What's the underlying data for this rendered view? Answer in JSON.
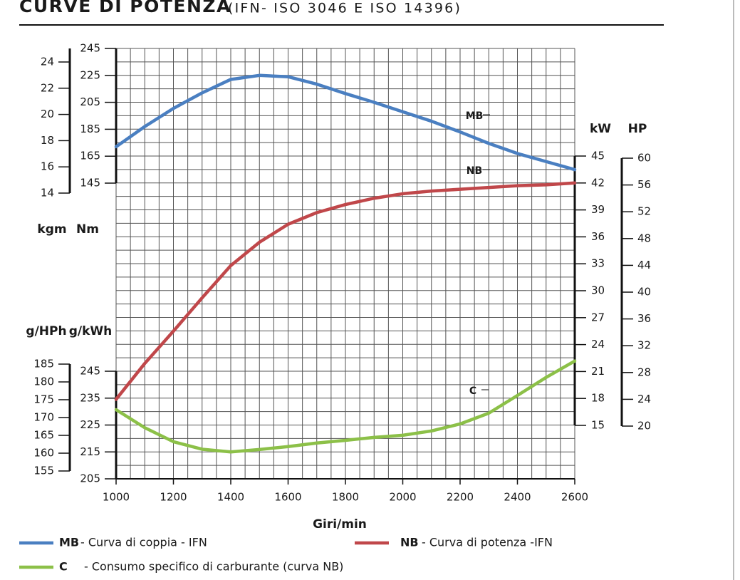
{
  "chart_data": {
    "type": "line",
    "title": "CURVE DI POTENZA",
    "subtitle": "(IFN- ISO 3046 E ISO 14396)",
    "grid": true,
    "xlabel": "Giri/min",
    "xlim": [
      1000,
      2600
    ],
    "xticks": [
      1000,
      1200,
      1400,
      1600,
      1800,
      2000,
      2200,
      2400,
      2600
    ],
    "x": [
      1000,
      1100,
      1200,
      1300,
      1400,
      1500,
      1600,
      1700,
      1800,
      1900,
      2000,
      2100,
      2200,
      2300,
      2400,
      2500,
      2600
    ],
    "ylabel": "Nm",
    "ylim": [
      145,
      245
    ],
    "yticks": [
      145,
      165,
      185,
      205,
      225,
      245
    ],
    "y2label": "kW",
    "y2lim": [
      15,
      45
    ],
    "y2ticks": [
      15,
      18,
      21,
      24,
      27,
      30,
      33,
      36,
      39,
      42,
      45
    ],
    "y3label": "g/kWh",
    "y3lim": [
      205,
      245
    ],
    "y3ticks": [
      205,
      215,
      225,
      235,
      245
    ],
    "y4label": "kgm",
    "y4lim": [
      14,
      24
    ],
    "y4ticks": [
      14,
      16,
      18,
      20,
      22,
      24
    ],
    "y5label": "HP",
    "y5lim": [
      20,
      60
    ],
    "y5ticks": [
      20,
      24,
      28,
      32,
      36,
      40,
      44,
      48,
      52,
      56,
      60
    ],
    "y6label": "g/HPh",
    "y6lim": [
      155,
      185
    ],
    "y6ticks": [
      155,
      160,
      165,
      170,
      175,
      180,
      185
    ],
    "series": [
      {
        "name": "MB",
        "description": "- Curva di coppia - IFN",
        "color": "#4a7fc1",
        "axis": "y",
        "values": [
          172,
          187,
          200.5,
          212,
          222,
          225,
          224,
          218.5,
          211.5,
          205,
          198,
          191,
          183,
          174.5,
          167,
          161,
          155
        ]
      },
      {
        "name": "NB",
        "description": "- Curva di potenza  -IFN",
        "color": "#c0474a",
        "axis": "y2",
        "values": [
          17.9,
          21.9,
          25.5,
          29.2,
          32.8,
          35.4,
          37.4,
          38.7,
          39.6,
          40.3,
          40.8,
          41.1,
          41.3,
          41.5,
          41.7,
          41.8,
          42
        ]
      },
      {
        "name": "C",
        "description": "- Consumo specifico di carburante (curva NB)",
        "color": "#8cc048",
        "axis": "y3",
        "values": [
          230.7,
          224,
          218.8,
          216,
          215,
          215.9,
          217,
          218.3,
          219.3,
          220.4,
          221.2,
          222.8,
          225.4,
          229.4,
          236,
          242.7,
          248.8
        ]
      }
    ]
  }
}
